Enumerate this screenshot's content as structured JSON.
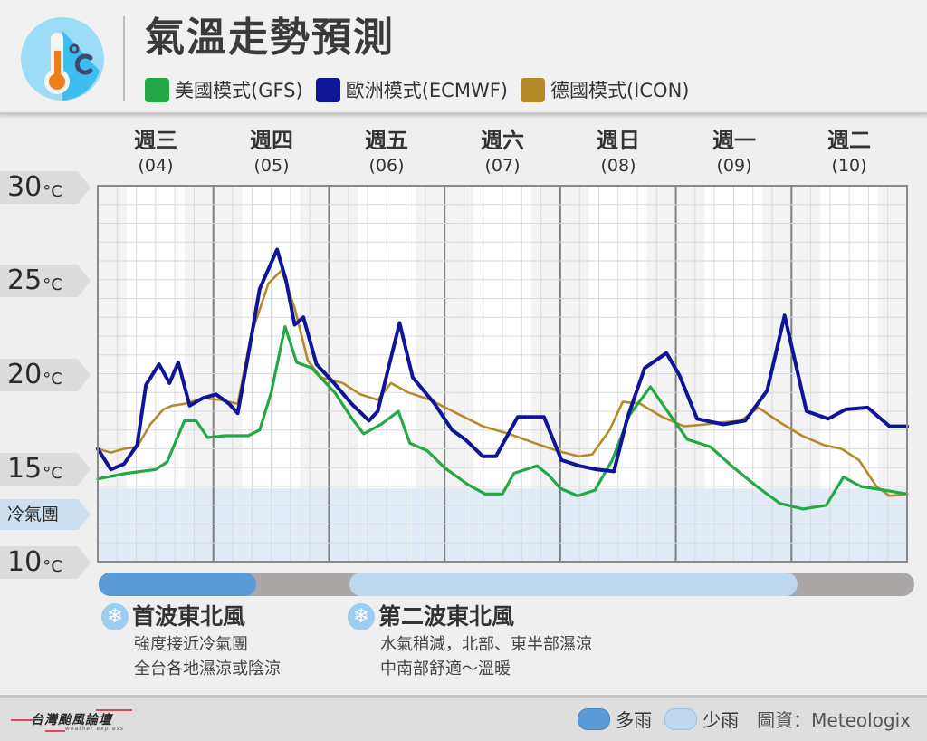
{
  "header": {
    "title": "氣溫走勢預測",
    "icon": "thermometer-celsius-icon"
  },
  "legend": [
    {
      "label": "美國模式(GFS)",
      "color": "#22a845"
    },
    {
      "label": "歐洲模式(ECMWF)",
      "color": "#0f1596"
    },
    {
      "label": "德國模式(ICON)",
      "color": "#b58a2b"
    }
  ],
  "days": [
    {
      "name": "週三",
      "date": "(04)"
    },
    {
      "name": "週四",
      "date": "(05)"
    },
    {
      "name": "週五",
      "date": "(06)"
    },
    {
      "name": "週六",
      "date": "(07)"
    },
    {
      "name": "週日",
      "date": "(08)"
    },
    {
      "name": "週一",
      "date": "(09)"
    },
    {
      "name": "週二",
      "date": "(10)"
    }
  ],
  "y_axis": {
    "unit": "°C",
    "ticks": [
      {
        "value": "30",
        "temp": 30
      },
      {
        "value": "25",
        "temp": 25
      },
      {
        "value": "20",
        "temp": 20
      },
      {
        "value": "15",
        "temp": 15
      },
      {
        "value": "10",
        "temp": 10
      }
    ],
    "cold_label": "冷氣團",
    "cold_threshold": 13.9
  },
  "rain_bar": {
    "segments": [
      {
        "type": "heavy",
        "start": 0.0,
        "end": 1.35,
        "color": "#5b9bd5"
      },
      {
        "type": "light",
        "start": 2.15,
        "end": 6.0,
        "color": "#bdd7ee"
      }
    ],
    "track_color": "#aba7a6"
  },
  "waves": [
    {
      "title": "首波東北風",
      "lines": [
        "強度接近冷氣團",
        "全台各地濕涼或陰涼"
      ]
    },
    {
      "title": "第二波東北風",
      "lines": [
        "水氣稍減，北部、東半部濕涼",
        "中南部舒適～溫暖"
      ]
    }
  ],
  "footer": {
    "brand": "台灣颱風論壇",
    "brand_sub": "weather express",
    "legend_heavy": "多雨",
    "legend_light": "少雨",
    "credit": "圖資：Meteologix"
  },
  "chart_data": {
    "type": "line",
    "title": "氣溫走勢預測",
    "xlabel": "",
    "ylabel": "°C",
    "ylim": [
      10,
      30
    ],
    "grid": true,
    "legend_position": "top",
    "categories": [
      "週三(04)",
      "週四(05)",
      "週五(06)",
      "週六(07)",
      "週日(08)",
      "週一(09)",
      "週二(10)"
    ],
    "annotations": [
      {
        "text": "冷氣團",
        "y_range": [
          10,
          13.9
        ]
      }
    ],
    "series": [
      {
        "name": "美國模式(GFS)",
        "color": "#22a845",
        "points": [
          [
            0,
            14.4
          ],
          [
            0.25,
            14.7
          ],
          [
            0.5,
            14.9
          ],
          [
            0.6,
            15.3
          ],
          [
            0.75,
            17.5
          ],
          [
            0.85,
            17.5
          ],
          [
            0.95,
            16.6
          ],
          [
            1.1,
            16.7
          ],
          [
            1.3,
            16.7
          ],
          [
            1.4,
            17.0
          ],
          [
            1.5,
            19.0
          ],
          [
            1.62,
            22.5
          ],
          [
            1.72,
            20.6
          ],
          [
            1.85,
            20.3
          ],
          [
            2.05,
            19.0
          ],
          [
            2.2,
            17.6
          ],
          [
            2.3,
            16.8
          ],
          [
            2.45,
            17.3
          ],
          [
            2.6,
            18.0
          ],
          [
            2.7,
            16.3
          ],
          [
            2.85,
            15.9
          ],
          [
            3.0,
            15.0
          ],
          [
            3.2,
            14.1
          ],
          [
            3.35,
            13.6
          ],
          [
            3.5,
            13.6
          ],
          [
            3.6,
            14.7
          ],
          [
            3.8,
            15.1
          ],
          [
            3.9,
            14.6
          ],
          [
            4.0,
            13.9
          ],
          [
            4.15,
            13.5
          ],
          [
            4.3,
            13.8
          ],
          [
            4.45,
            15.4
          ],
          [
            4.6,
            17.8
          ],
          [
            4.78,
            19.3
          ],
          [
            4.95,
            17.8
          ],
          [
            5.1,
            16.5
          ],
          [
            5.3,
            16.1
          ],
          [
            5.5,
            15.0
          ],
          [
            5.7,
            14.0
          ],
          [
            5.9,
            13.1
          ],
          [
            6.1,
            12.8
          ],
          [
            6.3,
            13.0
          ],
          [
            6.45,
            14.5
          ],
          [
            6.6,
            14.0
          ],
          [
            6.8,
            13.8
          ],
          [
            7.0,
            13.6
          ]
        ]
      },
      {
        "name": "歐洲模式(ECMWF)",
        "color": "#0f1596",
        "points": [
          [
            0,
            16.0
          ],
          [
            0.15,
            14.9
          ],
          [
            0.3,
            15.2
          ],
          [
            0.45,
            16.2
          ],
          [
            0.55,
            19.4
          ],
          [
            0.7,
            20.5
          ],
          [
            0.82,
            19.5
          ],
          [
            0.92,
            20.6
          ],
          [
            1.05,
            18.3
          ],
          [
            1.2,
            18.7
          ],
          [
            1.35,
            18.9
          ],
          [
            1.5,
            18.4
          ],
          [
            1.6,
            17.9
          ],
          [
            1.72,
            21.0
          ],
          [
            1.85,
            24.5
          ],
          [
            2.05,
            26.6
          ],
          [
            2.15,
            25.0
          ],
          [
            2.25,
            22.6
          ],
          [
            2.35,
            23.0
          ],
          [
            2.5,
            20.5
          ],
          [
            2.7,
            19.5
          ],
          [
            2.9,
            18.4
          ],
          [
            3.1,
            17.5
          ],
          [
            3.2,
            18.0
          ],
          [
            3.45,
            22.7
          ],
          [
            3.6,
            19.8
          ],
          [
            3.85,
            18.4
          ],
          [
            4.05,
            17.0
          ],
          [
            4.2,
            16.5
          ],
          [
            4.4,
            15.6
          ],
          [
            4.55,
            15.6
          ],
          [
            4.8,
            17.7
          ],
          [
            5.1,
            17.7
          ],
          [
            5.3,
            15.4
          ],
          [
            5.5,
            15.1
          ],
          [
            5.7,
            14.9
          ],
          [
            5.9,
            14.8
          ],
          [
            6.05,
            17.6
          ],
          [
            6.25,
            20.3
          ],
          [
            6.5,
            21.1
          ],
          [
            6.65,
            19.9
          ],
          [
            6.85,
            17.6
          ],
          [
            7.05,
            17.4
          ],
          [
            7.15,
            17.3
          ],
          [
            7.4,
            17.5
          ],
          [
            7.65,
            19.1
          ],
          [
            7.85,
            23.1
          ],
          [
            8.1,
            18.0
          ],
          [
            8.35,
            17.6
          ],
          [
            8.55,
            18.1
          ],
          [
            8.8,
            18.2
          ],
          [
            9.05,
            17.2
          ],
          [
            9.25,
            17.2
          ]
        ]
      },
      {
        "name": "德國模式(ICON)",
        "color": "#b58a2b",
        "points": [
          [
            0,
            16.0
          ],
          [
            0.15,
            15.8
          ],
          [
            0.3,
            16.0
          ],
          [
            0.45,
            16.1
          ],
          [
            0.6,
            17.3
          ],
          [
            0.75,
            18.1
          ],
          [
            0.85,
            18.3
          ],
          [
            1.0,
            18.4
          ],
          [
            1.2,
            18.7
          ],
          [
            1.4,
            18.6
          ],
          [
            1.6,
            18.4
          ],
          [
            1.75,
            22.0
          ],
          [
            1.95,
            24.8
          ],
          [
            2.1,
            25.5
          ],
          [
            2.25,
            23.5
          ],
          [
            2.4,
            20.7
          ],
          [
            2.55,
            19.8
          ],
          [
            2.8,
            19.5
          ],
          [
            3.0,
            18.9
          ],
          [
            3.2,
            18.6
          ],
          [
            3.35,
            19.5
          ],
          [
            3.55,
            19.0
          ],
          [
            3.8,
            18.6
          ],
          [
            4.1,
            17.9
          ],
          [
            4.4,
            17.2
          ],
          [
            4.7,
            16.8
          ],
          [
            5.0,
            16.3
          ],
          [
            5.25,
            15.9
          ],
          [
            5.5,
            15.6
          ],
          [
            5.65,
            15.7
          ],
          [
            5.85,
            17.0
          ],
          [
            6.0,
            18.5
          ],
          [
            6.2,
            18.4
          ],
          [
            6.45,
            17.7
          ],
          [
            6.7,
            17.2
          ],
          [
            6.95,
            17.3
          ],
          [
            7.1,
            17.4
          ],
          [
            7.35,
            17.5
          ],
          [
            7.55,
            18.2
          ],
          [
            7.8,
            17.4
          ],
          [
            8.05,
            16.7
          ],
          [
            8.3,
            16.2
          ],
          [
            8.5,
            16.0
          ],
          [
            8.7,
            15.4
          ],
          [
            8.9,
            14.0
          ],
          [
            9.05,
            13.5
          ],
          [
            9.25,
            13.6
          ]
        ]
      }
    ]
  }
}
